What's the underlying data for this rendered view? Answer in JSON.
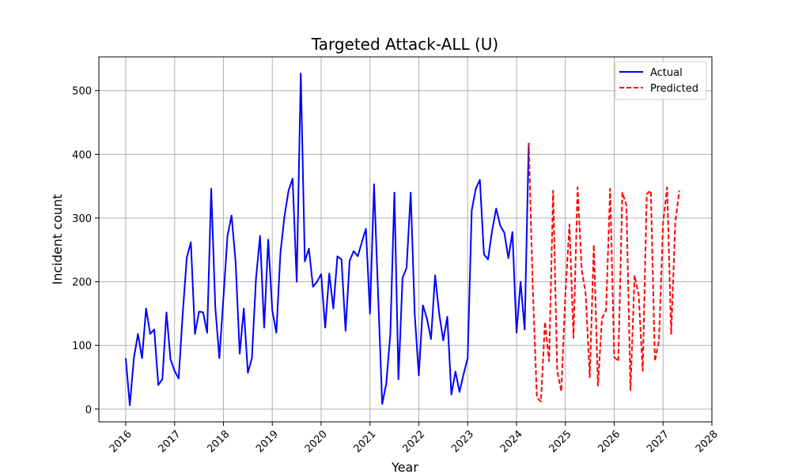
{
  "chart_data": {
    "type": "line",
    "title": "Targeted Attack-ALL (U)",
    "xlabel": "Year",
    "ylabel": "Incident count",
    "xlim": [
      2015.45,
      2028.0
    ],
    "ylim": [
      -20,
      553
    ],
    "x_ticks": [
      2016,
      2017,
      2018,
      2019,
      2020,
      2021,
      2022,
      2023,
      2024,
      2025,
      2026,
      2027,
      2028
    ],
    "x_tick_labels": [
      "2016",
      "2017",
      "2018",
      "2019",
      "2020",
      "2021",
      "2022",
      "2023",
      "2024",
      "2025",
      "2026",
      "2027",
      "2028"
    ],
    "y_ticks": [
      0,
      100,
      200,
      300,
      400,
      500
    ],
    "y_tick_labels": [
      "0",
      "100",
      "200",
      "300",
      "400",
      "500"
    ],
    "grid": true,
    "legend_position": "top-right",
    "series": [
      {
        "name": "Actual",
        "color": "#0000ff",
        "style": "solid",
        "x_start": 2016.0,
        "x_step": 0.0833333,
        "values": [
          80,
          6,
          80,
          118,
          80,
          158,
          118,
          125,
          38,
          47,
          152,
          78,
          60,
          48,
          150,
          238,
          262,
          118,
          153,
          152,
          120,
          346,
          160,
          80,
          175,
          272,
          304,
          230,
          87,
          158,
          57,
          80,
          205,
          272,
          128,
          266,
          155,
          120,
          245,
          303,
          343,
          362,
          200,
          527,
          232,
          252,
          192,
          200,
          212,
          128,
          213,
          158,
          240,
          235,
          123,
          233,
          248,
          240,
          262,
          283,
          150,
          353,
          180,
          8,
          40,
          118,
          340,
          47,
          206,
          222,
          340,
          148,
          53,
          163,
          142,
          110,
          210,
          150,
          108,
          145,
          23,
          59,
          27,
          55,
          80,
          312,
          346,
          360,
          243,
          235,
          280,
          315,
          288,
          277,
          237,
          278,
          120,
          200,
          125,
          418
        ]
      },
      {
        "name": "Predicted",
        "color": "#ff0000",
        "style": "dashed",
        "x_start": 2024.25,
        "x_step": 0.0833333,
        "values": [
          418,
          190,
          18,
          12,
          137,
          75,
          343,
          60,
          28,
          180,
          290,
          112,
          348,
          220,
          180,
          50,
          258,
          37,
          143,
          155,
          346,
          82,
          75,
          340,
          320,
          30,
          210,
          180,
          60,
          338,
          343,
          75,
          108,
          292,
          348,
          118,
          293,
          343
        ]
      }
    ]
  }
}
